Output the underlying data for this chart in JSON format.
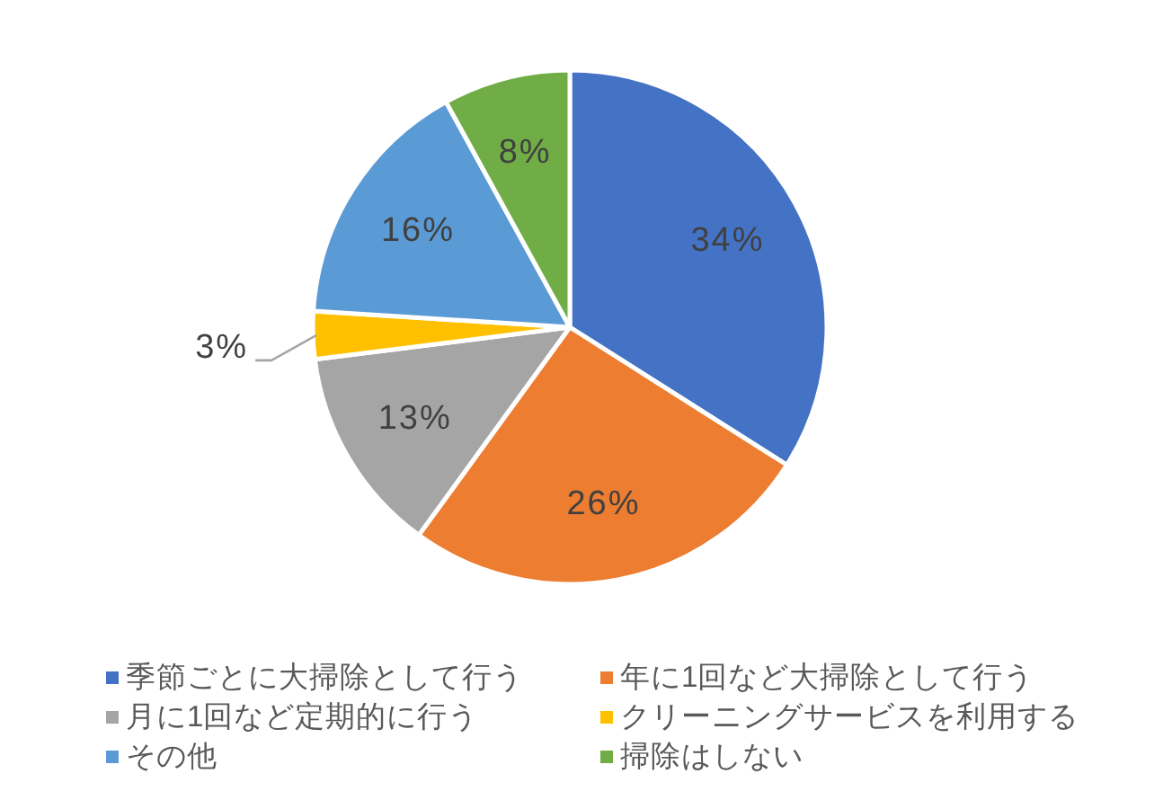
{
  "chart_data": {
    "type": "pie",
    "categories": [
      "季節ごとに大掃除として行う",
      "年に1回など大掃除として行う",
      "月に1回など定期的に行う",
      "クリーニングサービスを利用する",
      "その他",
      "掃除はしない"
    ],
    "values": [
      34,
      26,
      13,
      3,
      16,
      8
    ],
    "colors": [
      "#4472c4",
      "#ed7d31",
      "#a5a5a5",
      "#ffc000",
      "#5b9bd5",
      "#70ad47"
    ],
    "value_labels": [
      "34%",
      "26%",
      "13%",
      "3%",
      "16%",
      "8%"
    ],
    "legend": "bottom"
  }
}
